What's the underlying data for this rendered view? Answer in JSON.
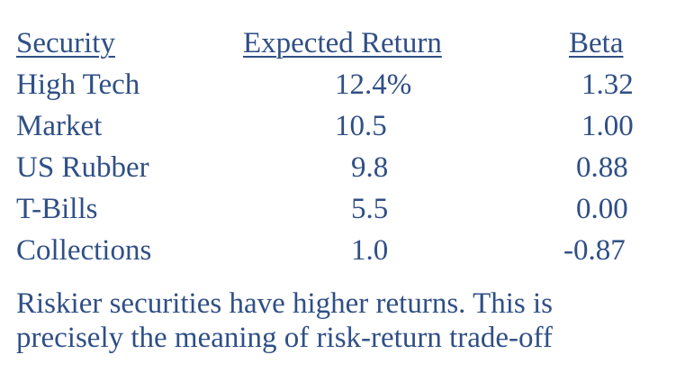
{
  "table": {
    "headers": {
      "security": "Security",
      "expected_return": "Expected Return",
      "beta": "Beta"
    },
    "rows": [
      {
        "security": "High Tech",
        "expected_return": "12.4%",
        "beta": "1.32"
      },
      {
        "security": "Market",
        "expected_return": "10.5",
        "beta": "1.00"
      },
      {
        "security": "US Rubber",
        "expected_return": "9.8",
        "beta": "0.88"
      },
      {
        "security": "T-Bills",
        "expected_return": "5.5",
        "beta": "0.00"
      },
      {
        "security": "Collections",
        "expected_return": "1.0",
        "beta": "-0.87"
      }
    ]
  },
  "note": {
    "line1": "Riskier securities have higher returns. This is",
    "line2": "precisely the meaning of risk-return trade-off"
  },
  "colors": {
    "text": "#2f4f86",
    "background": "#ffffff"
  }
}
